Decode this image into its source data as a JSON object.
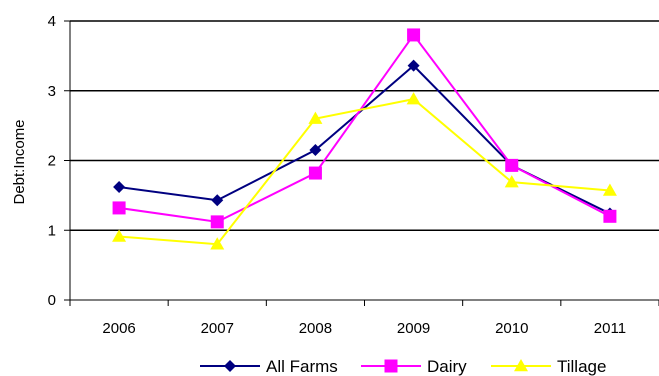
{
  "chart_data": {
    "type": "line",
    "title": "",
    "xlabel": "",
    "ylabel": "Debt:Income",
    "categories": [
      "2006",
      "2007",
      "2008",
      "2009",
      "2010",
      "2011"
    ],
    "ylim": [
      0,
      4
    ],
    "yticks": [
      "0",
      "1",
      "2",
      "3",
      "4"
    ],
    "grid": true,
    "legend_position": "bottom",
    "series": [
      {
        "name": "All Farms",
        "values": [
          1.62,
          1.43,
          2.15,
          3.36,
          1.93,
          1.24
        ],
        "color": "#000080",
        "marker": "diamond"
      },
      {
        "name": "Dairy",
        "values": [
          1.32,
          1.12,
          1.82,
          3.8,
          1.93,
          1.2
        ],
        "color": "#FF00FF",
        "marker": "square"
      },
      {
        "name": "Tillage",
        "values": [
          0.91,
          0.8,
          2.6,
          2.88,
          1.69,
          1.57
        ],
        "color": "#FFFF00",
        "marker": "triangle"
      }
    ]
  }
}
